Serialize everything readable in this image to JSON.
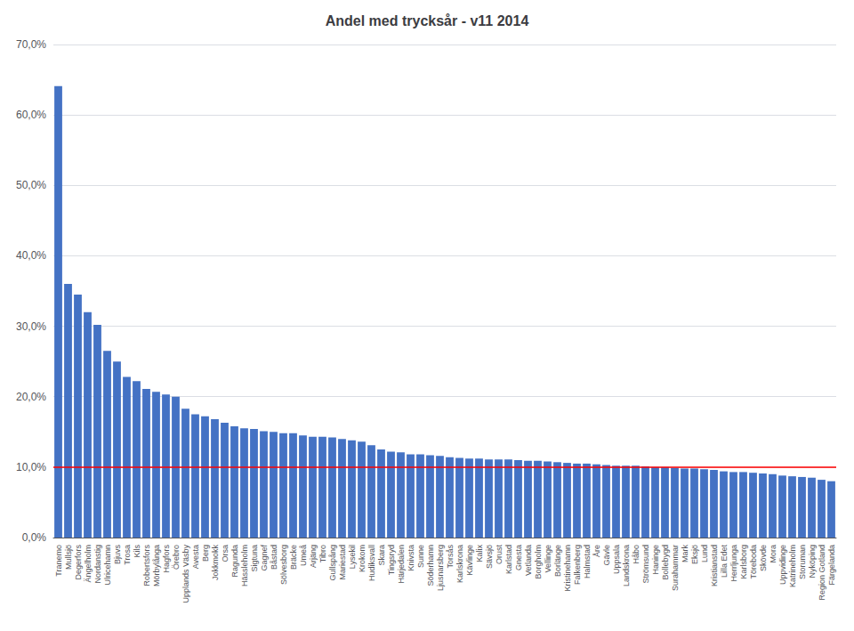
{
  "chart_data": {
    "type": "bar",
    "title": "Andel med trycksår - v11 2014",
    "categories": [
      "Tranemo",
      "Mullsjö",
      "Degerfors",
      "Ängelholm",
      "Nordanstig",
      "Ulricehamn",
      "Bjuvs",
      "Trosa",
      "Kils",
      "Robertsfors",
      "Mörbylånga",
      "Hagfors",
      "Örebro",
      "Upplands Väsby",
      "Avesta",
      "Berg",
      "Jokkmokk",
      "Orsa",
      "Ragunda",
      "Hässleholm",
      "Sigtuna",
      "Gagnef",
      "Båstad",
      "Sölvesborg",
      "Bräcke",
      "Umeå",
      "Arjäng",
      "Tibro",
      "Gullspång",
      "Mariestad",
      "Lysekil",
      "Krokom",
      "Hudiksvall",
      "Skara",
      "Tingsryd",
      "Härjedalen",
      "Knivsta",
      "Sunne",
      "Söderhamn",
      "Ljusnarsberg",
      "Torsås",
      "Karlskrona",
      "Kävlinge",
      "Kalix",
      "Sävsjö",
      "Orust",
      "Karlstad",
      "Gnesta",
      "Vetlanda",
      "Borgholm",
      "Vellinge",
      "Borlänge",
      "Kristinehamn",
      "Falkenberg",
      "Halmstad",
      "Åre",
      "Gävle",
      "Uppsala",
      "Landskrona",
      "Håbo",
      "Strömsund",
      "Haninge",
      "Bollebygd",
      "Surahammar",
      "Mark",
      "Eksjö",
      "Lund",
      "Kristianstad",
      "Lilla Edet",
      "Herrljunga",
      "Karlsborg",
      "Töreboda",
      "Skövde",
      "Mora",
      "Uppvidinge",
      "Katrineholm",
      "Storuman",
      "Nyköping",
      "Region Gotland",
      "Färgelanda"
    ],
    "values": [
      0.641,
      0.36,
      0.345,
      0.32,
      0.302,
      0.265,
      0.25,
      0.228,
      0.222,
      0.211,
      0.207,
      0.203,
      0.2,
      0.183,
      0.175,
      0.172,
      0.168,
      0.163,
      0.158,
      0.155,
      0.154,
      0.151,
      0.15,
      0.148,
      0.148,
      0.145,
      0.143,
      0.143,
      0.142,
      0.14,
      0.138,
      0.136,
      0.131,
      0.125,
      0.122,
      0.121,
      0.118,
      0.118,
      0.117,
      0.116,
      0.114,
      0.113,
      0.112,
      0.112,
      0.111,
      0.111,
      0.111,
      0.11,
      0.109,
      0.109,
      0.108,
      0.107,
      0.106,
      0.105,
      0.105,
      0.104,
      0.103,
      0.102,
      0.102,
      0.102,
      0.101,
      0.1,
      0.1,
      0.099,
      0.098,
      0.098,
      0.097,
      0.096,
      0.094,
      0.093,
      0.093,
      0.092,
      0.091,
      0.09,
      0.088,
      0.087,
      0.086,
      0.085,
      0.082,
      0.08
    ],
    "color": "#4472C4",
    "lines": [
      {
        "y": 0.097,
        "color": "#FF0000"
      }
    ],
    "ylim": [
      0,
      0.7
    ],
    "yticks": [
      {
        "value": 0.0,
        "label": "0,0%"
      },
      {
        "value": 0.1,
        "label": "10,0%"
      },
      {
        "value": 0.2,
        "label": "20,0%"
      },
      {
        "value": 0.3,
        "label": "30,0%"
      },
      {
        "value": 0.4,
        "label": "40,0%"
      },
      {
        "value": 0.5,
        "label": "50,0%"
      },
      {
        "value": 0.6,
        "label": "60,0%"
      },
      {
        "value": 0.7,
        "label": "70,0%"
      }
    ],
    "grid": true
  }
}
